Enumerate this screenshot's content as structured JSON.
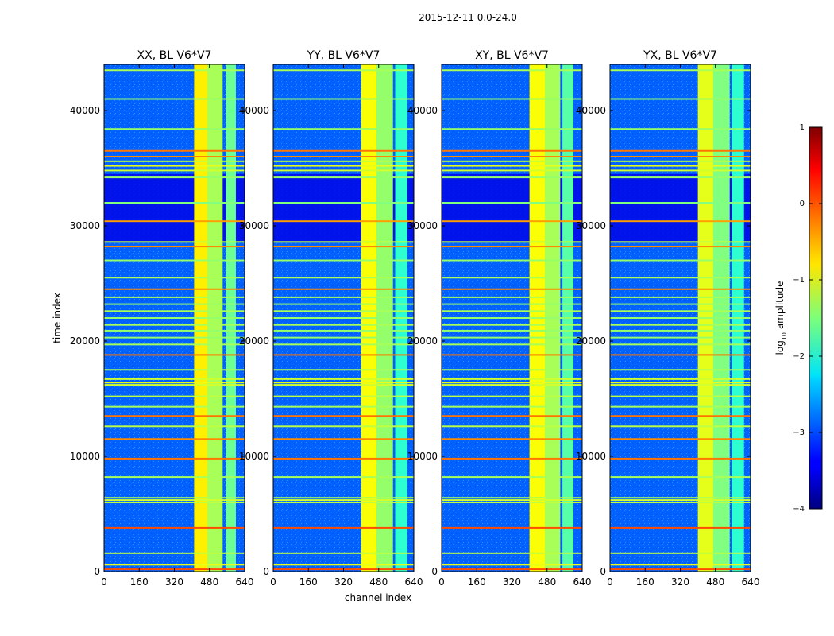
{
  "figure": {
    "suptitle": "2015-12-11 0.0-24.0"
  },
  "chart_data": {
    "type": "heatmap",
    "xlabel": "channel index",
    "ylabel": "time index",
    "xlim": [
      0,
      640
    ],
    "ylim": [
      0,
      44000
    ],
    "x_ticks": [
      "0",
      "160",
      "320",
      "480",
      "640"
    ],
    "y_ticks": [
      "0",
      "10000",
      "20000",
      "30000",
      "40000"
    ],
    "panels": [
      {
        "title": "XX, BL V6*V7",
        "bands": [
          {
            "x0": 410,
            "x1": 470,
            "level": -0.8
          },
          {
            "x0": 470,
            "x1": 540,
            "level": -1.3
          },
          {
            "x0": 555,
            "x1": 600,
            "level": -1.6
          }
        ]
      },
      {
        "title": "YY, BL V6*V7",
        "bands": [
          {
            "x0": 400,
            "x1": 470,
            "level": -0.9
          },
          {
            "x0": 470,
            "x1": 545,
            "level": -1.4
          },
          {
            "x0": 555,
            "x1": 610,
            "level": -1.9
          }
        ]
      },
      {
        "title": "XY, BL V6*V7",
        "bands": [
          {
            "x0": 400,
            "x1": 470,
            "level": -0.9
          },
          {
            "x0": 470,
            "x1": 540,
            "level": -1.3
          },
          {
            "x0": 550,
            "x1": 600,
            "level": -1.7
          }
        ]
      },
      {
        "title": "YX, BL V6*V7",
        "bands": [
          {
            "x0": 400,
            "x1": 470,
            "level": -1.0
          },
          {
            "x0": 470,
            "x1": 545,
            "level": -1.5
          },
          {
            "x0": 555,
            "x1": 610,
            "level": -1.9
          }
        ]
      }
    ],
    "time_flag_lines": [
      {
        "t": 200,
        "level": 0.0
      },
      {
        "t": 600,
        "level": -1.0
      },
      {
        "t": 1600,
        "level": -1.2
      },
      {
        "t": 3800,
        "level": 0.0
      },
      {
        "t": 6000,
        "level": -1.2
      },
      {
        "t": 6200,
        "level": -1.1
      },
      {
        "t": 6400,
        "level": -1.3
      },
      {
        "t": 8200,
        "level": -1.3
      },
      {
        "t": 9800,
        "level": -0.2
      },
      {
        "t": 11500,
        "level": -0.3
      },
      {
        "t": 12600,
        "level": -1.2
      },
      {
        "t": 13500,
        "level": -0.2
      },
      {
        "t": 14300,
        "level": -1.3
      },
      {
        "t": 15200,
        "level": -1.2
      },
      {
        "t": 16200,
        "level": -1.1
      },
      {
        "t": 16400,
        "level": -1.0
      },
      {
        "t": 16700,
        "level": -1.1
      },
      {
        "t": 17500,
        "level": -1.3
      },
      {
        "t": 18800,
        "level": -0.2
      },
      {
        "t": 19700,
        "level": -1.3
      },
      {
        "t": 20300,
        "level": -1.4
      },
      {
        "t": 20900,
        "level": -1.4
      },
      {
        "t": 21400,
        "level": -1.3
      },
      {
        "t": 22000,
        "level": -1.4
      },
      {
        "t": 22600,
        "level": -1.3
      },
      {
        "t": 23200,
        "level": -1.4
      },
      {
        "t": 23800,
        "level": -1.3
      },
      {
        "t": 24500,
        "level": -0.3
      },
      {
        "t": 25500,
        "level": -1.3
      },
      {
        "t": 27000,
        "level": -1.4
      },
      {
        "t": 28200,
        "level": -0.3
      },
      {
        "t": 28600,
        "level": -1.2
      },
      {
        "t": 30400,
        "level": -0.4
      },
      {
        "t": 32000,
        "level": -1.5
      },
      {
        "t": 34200,
        "level": -1.4
      },
      {
        "t": 34800,
        "level": -1.1
      },
      {
        "t": 35200,
        "level": -1.0
      },
      {
        "t": 35600,
        "level": -1.2
      },
      {
        "t": 36000,
        "level": -0.3
      },
      {
        "t": 36500,
        "level": -0.2
      },
      {
        "t": 38400,
        "level": -1.4
      },
      {
        "t": 41000,
        "level": -1.4
      },
      {
        "t": 43500,
        "level": -1.3
      }
    ],
    "colorbar": {
      "label": "log",
      "label_subscript": "10",
      "label_suffix": " amplitude",
      "range": [
        -4,
        1
      ],
      "ticks": [
        "1",
        "0",
        "−1",
        "−2",
        "−3",
        "−4"
      ],
      "tick_values": [
        1,
        0,
        -1,
        -2,
        -3,
        -4
      ],
      "colormap": "jet"
    }
  }
}
